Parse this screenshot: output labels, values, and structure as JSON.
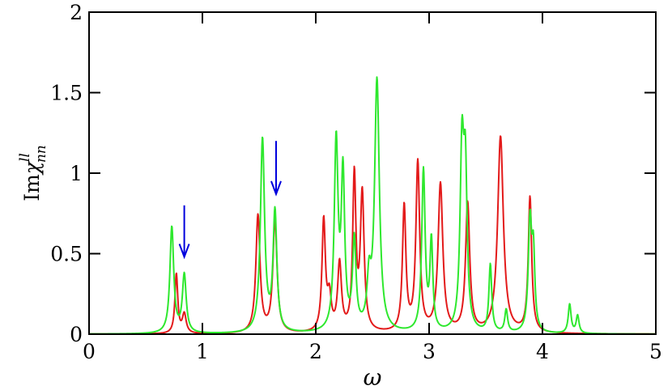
{
  "chart_data": {
    "type": "line",
    "xlabel": "ω",
    "ylabel": {
      "prefix": "Im",
      "symbol": "χ",
      "sup": "ll",
      "sub": "nn"
    },
    "xlim": [
      0,
      5
    ],
    "ylim": [
      0,
      2
    ],
    "xticks": [
      0,
      1,
      2,
      3,
      4,
      5
    ],
    "xtick_labels": [
      "0",
      "1",
      "2",
      "3",
      "4",
      "5"
    ],
    "yticks": [
      0,
      0.5,
      1,
      1.5,
      2
    ],
    "ytick_labels": [
      "0",
      "0.5",
      "1",
      "1.5",
      "2"
    ],
    "grid": false,
    "series": [
      {
        "color": "#e31a1a",
        "peaks": [
          {
            "x": 0.77,
            "h": 0.37,
            "w": 0.015
          },
          {
            "x": 0.84,
            "h": 0.12,
            "w": 0.02
          },
          {
            "x": 1.49,
            "h": 0.73,
            "w": 0.022
          },
          {
            "x": 1.64,
            "h": 0.7,
            "w": 0.022
          },
          {
            "x": 2.07,
            "h": 0.69,
            "w": 0.018
          },
          {
            "x": 2.12,
            "h": 0.2,
            "w": 0.02
          },
          {
            "x": 2.21,
            "h": 0.42,
            "w": 0.02
          },
          {
            "x": 2.34,
            "h": 0.96,
            "w": 0.017
          },
          {
            "x": 2.41,
            "h": 0.85,
            "w": 0.02
          },
          {
            "x": 2.78,
            "h": 0.78,
            "w": 0.018
          },
          {
            "x": 2.9,
            "h": 1.05,
            "w": 0.02
          },
          {
            "x": 3.1,
            "h": 0.92,
            "w": 0.025
          },
          {
            "x": 3.34,
            "h": 0.8,
            "w": 0.022
          },
          {
            "x": 3.63,
            "h": 1.22,
            "w": 0.03
          },
          {
            "x": 3.89,
            "h": 0.84,
            "w": 0.018
          }
        ]
      },
      {
        "color": "#2ee82e",
        "peaks": [
          {
            "x": 0.73,
            "h": 0.66,
            "w": 0.02
          },
          {
            "x": 0.84,
            "h": 0.36,
            "w": 0.02
          },
          {
            "x": 1.53,
            "h": 1.2,
            "w": 0.022
          },
          {
            "x": 1.64,
            "h": 0.74,
            "w": 0.02
          },
          {
            "x": 2.18,
            "h": 1.17,
            "w": 0.02
          },
          {
            "x": 2.24,
            "h": 0.95,
            "w": 0.018
          },
          {
            "x": 2.34,
            "h": 0.55,
            "w": 0.018
          },
          {
            "x": 2.47,
            "h": 0.28,
            "w": 0.02
          },
          {
            "x": 2.54,
            "h": 1.56,
            "w": 0.025
          },
          {
            "x": 2.95,
            "h": 1.0,
            "w": 0.018
          },
          {
            "x": 3.02,
            "h": 0.55,
            "w": 0.015
          },
          {
            "x": 3.29,
            "h": 1.1,
            "w": 0.02
          },
          {
            "x": 3.32,
            "h": 0.9,
            "w": 0.018
          },
          {
            "x": 3.54,
            "h": 0.42,
            "w": 0.015
          },
          {
            "x": 3.68,
            "h": 0.14,
            "w": 0.015
          },
          {
            "x": 3.89,
            "h": 0.68,
            "w": 0.018
          },
          {
            "x": 3.92,
            "h": 0.45,
            "w": 0.015
          },
          {
            "x": 4.24,
            "h": 0.18,
            "w": 0.015
          },
          {
            "x": 4.31,
            "h": 0.11,
            "w": 0.015
          }
        ]
      }
    ],
    "annotations": [
      {
        "type": "arrow",
        "color": "#0000dd",
        "x": 0.84,
        "y_from": 0.8,
        "y_to": 0.48
      },
      {
        "type": "arrow",
        "color": "#0000dd",
        "x": 1.65,
        "y_from": 1.2,
        "y_to": 0.87
      }
    ]
  }
}
